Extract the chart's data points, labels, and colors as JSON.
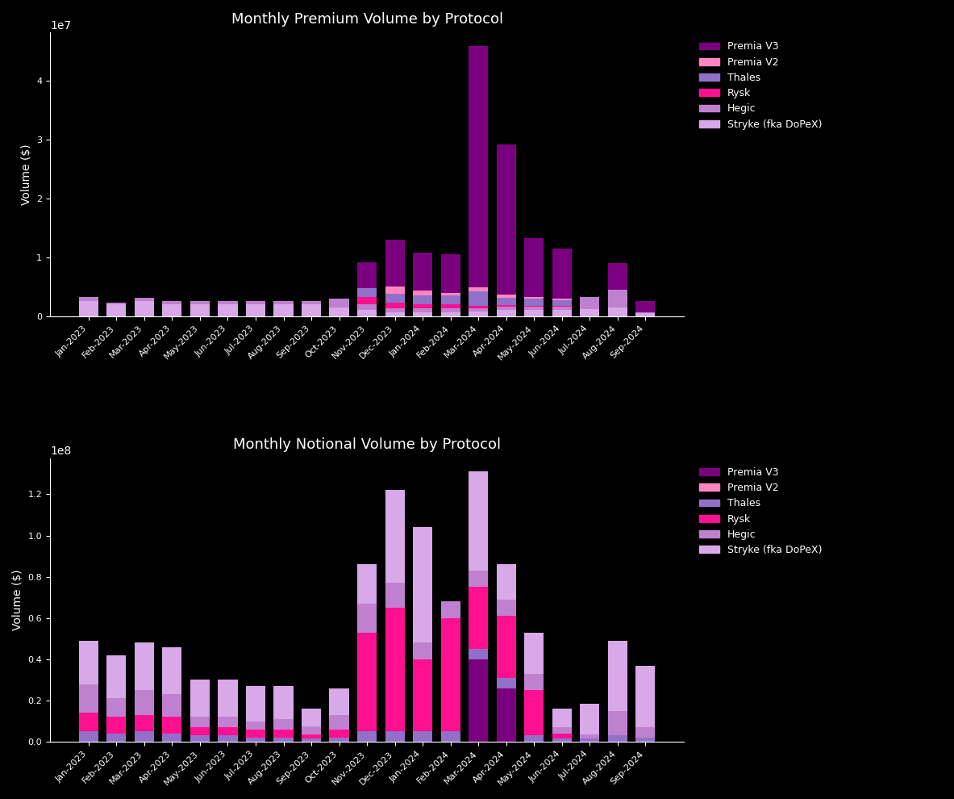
{
  "months": [
    "Jan-2023",
    "Feb-2023",
    "Mar-2023",
    "Apr-2023",
    "May-2023",
    "Jun-2023",
    "Jul-2023",
    "Aug-2023",
    "Sep-2023",
    "Oct-2023",
    "Nov-2023",
    "Dec-2023",
    "Jan-2024",
    "Feb-2024",
    "Mar-2024",
    "Apr-2024",
    "May-2024",
    "Jun-2024",
    "Jul-2024",
    "Aug-2024",
    "Sep-2024"
  ],
  "colors": {
    "Premia V3": "#7B0080",
    "Premia V2": "#FF85C0",
    "Thales": "#9070C8",
    "Rysk": "#FF1090",
    "Hegic": "#C080D0",
    "Stryke (fka DoPeX)": "#D8A8E8"
  },
  "legend_order": [
    "Premia V3",
    "Premia V2",
    "Thales",
    "Rysk",
    "Hegic",
    "Stryke (fka DoPeX)"
  ],
  "premium_stack_order": [
    "Stryke (fka DoPeX)",
    "Hegic",
    "Rysk",
    "Thales",
    "Premia V2",
    "Premia V3"
  ],
  "premium": {
    "Stryke (fka DoPeX)": [
      2600000,
      2000000,
      2500000,
      2000000,
      2000000,
      2000000,
      2000000,
      2000000,
      2000000,
      1500000,
      1000000,
      700000,
      700000,
      700000,
      800000,
      1000000,
      1000000,
      1000000,
      1200000,
      1500000,
      500000
    ],
    "Hegic": [
      700000,
      300000,
      600000,
      500000,
      600000,
      600000,
      600000,
      600000,
      600000,
      1500000,
      1000000,
      600000,
      600000,
      600000,
      600000,
      600000,
      600000,
      600000,
      2000000,
      3000000,
      200000
    ],
    "Rysk": [
      0,
      0,
      0,
      0,
      0,
      0,
      0,
      0,
      0,
      0,
      1200000,
      1000000,
      700000,
      700000,
      300000,
      300000,
      200000,
      150000,
      0,
      0,
      0
    ],
    "Thales": [
      0,
      0,
      0,
      0,
      0,
      0,
      0,
      0,
      0,
      0,
      1500000,
      1500000,
      1500000,
      1500000,
      2500000,
      1200000,
      1200000,
      1000000,
      0,
      0,
      0
    ],
    "Premia V2": [
      0,
      0,
      0,
      0,
      0,
      0,
      0,
      0,
      0,
      0,
      0,
      1200000,
      800000,
      500000,
      700000,
      500000,
      300000,
      200000,
      0,
      0,
      0
    ],
    "Premia V3": [
      0,
      0,
      0,
      0,
      0,
      0,
      0,
      0,
      0,
      0,
      4500000,
      8000000,
      6500000,
      6500000,
      41000000,
      25500000,
      10000000,
      8500000,
      0,
      4500000,
      1800000
    ]
  },
  "notional_stack_order": [
    "Premia V3",
    "Premia V2",
    "Thales",
    "Rysk",
    "Hegic",
    "Stryke (fka DoPeX)"
  ],
  "notional": {
    "Premia V3": [
      0,
      0,
      0,
      0,
      0,
      0,
      0,
      0,
      0,
      0,
      0,
      0,
      0,
      0,
      40000000,
      26000000,
      0,
      0,
      0,
      0,
      0
    ],
    "Premia V2": [
      0,
      0,
      0,
      0,
      0,
      0,
      0,
      0,
      0,
      0,
      0,
      0,
      0,
      0,
      0,
      0,
      0,
      0,
      0,
      0,
      0
    ],
    "Thales": [
      5000000,
      4000000,
      5000000,
      4000000,
      3000000,
      3000000,
      2000000,
      2000000,
      1500000,
      2000000,
      5000000,
      5000000,
      5000000,
      5000000,
      5000000,
      5000000,
      3000000,
      1500000,
      1500000,
      3000000,
      2000000
    ],
    "Rysk": [
      9000000,
      8000000,
      8000000,
      8000000,
      4000000,
      4000000,
      4000000,
      4000000,
      2000000,
      4000000,
      48000000,
      60000000,
      35000000,
      55000000,
      30000000,
      30000000,
      22000000,
      2500000,
      0,
      0,
      0
    ],
    "Hegic": [
      14000000,
      9000000,
      12000000,
      11000000,
      5000000,
      5000000,
      4000000,
      5000000,
      4000000,
      7000000,
      14000000,
      12000000,
      8000000,
      8000000,
      8000000,
      8000000,
      8000000,
      3000000,
      2000000,
      12000000,
      5000000
    ],
    "Stryke (fka DoPeX)": [
      21000000,
      21000000,
      23000000,
      23000000,
      18000000,
      18000000,
      17000000,
      16000000,
      8500000,
      13000000,
      19000000,
      45000000,
      56000000,
      0,
      48000000,
      17000000,
      20000000,
      9000000,
      15000000,
      34000000,
      30000000
    ]
  },
  "title1": "Monthly Premium Volume by Protocol",
  "title2": "Monthly Notional Volume by Protocol",
  "ylabel": "Volume ($)",
  "background_color": "#000000",
  "text_color": "#FFFFFF",
  "bar_width": 0.7
}
